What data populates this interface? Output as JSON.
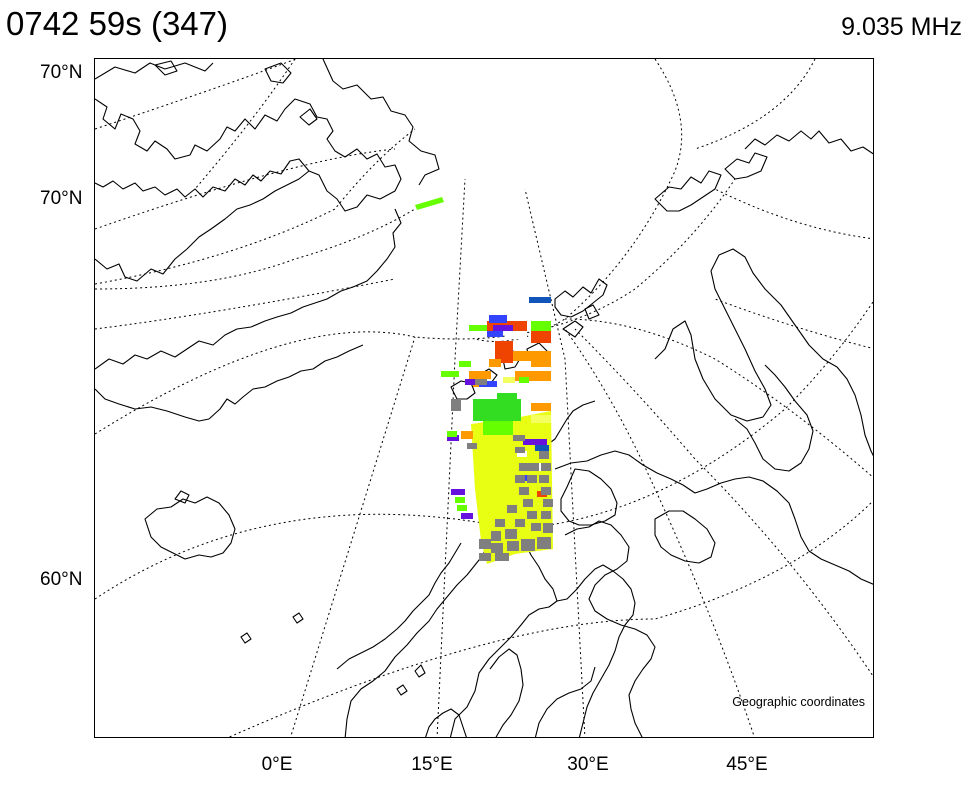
{
  "header": {
    "time_label": "0742 59s (347)",
    "frequency_label": "9.035 MHz"
  },
  "map": {
    "lat_labels": [
      "70°N",
      "70°N",
      "60°N"
    ],
    "lon_labels": [
      "0°E",
      "15°E",
      "30°E",
      "45°E"
    ],
    "caption": "Geographic coordinates",
    "coastline_color": "#000000",
    "grid_color": "#000000"
  },
  "colors": {
    "yellow": "#e8ff14",
    "light_yellow": "#f4ff60",
    "green": "#33dd22",
    "lime": "#66ff00",
    "orange": "#ff9900",
    "red": "#ee4400",
    "blue": "#3344ff",
    "violet": "#6611dd",
    "steel_blue": "#1155bb",
    "gray": "#7f7f7f",
    "white": "#ffffff"
  }
}
